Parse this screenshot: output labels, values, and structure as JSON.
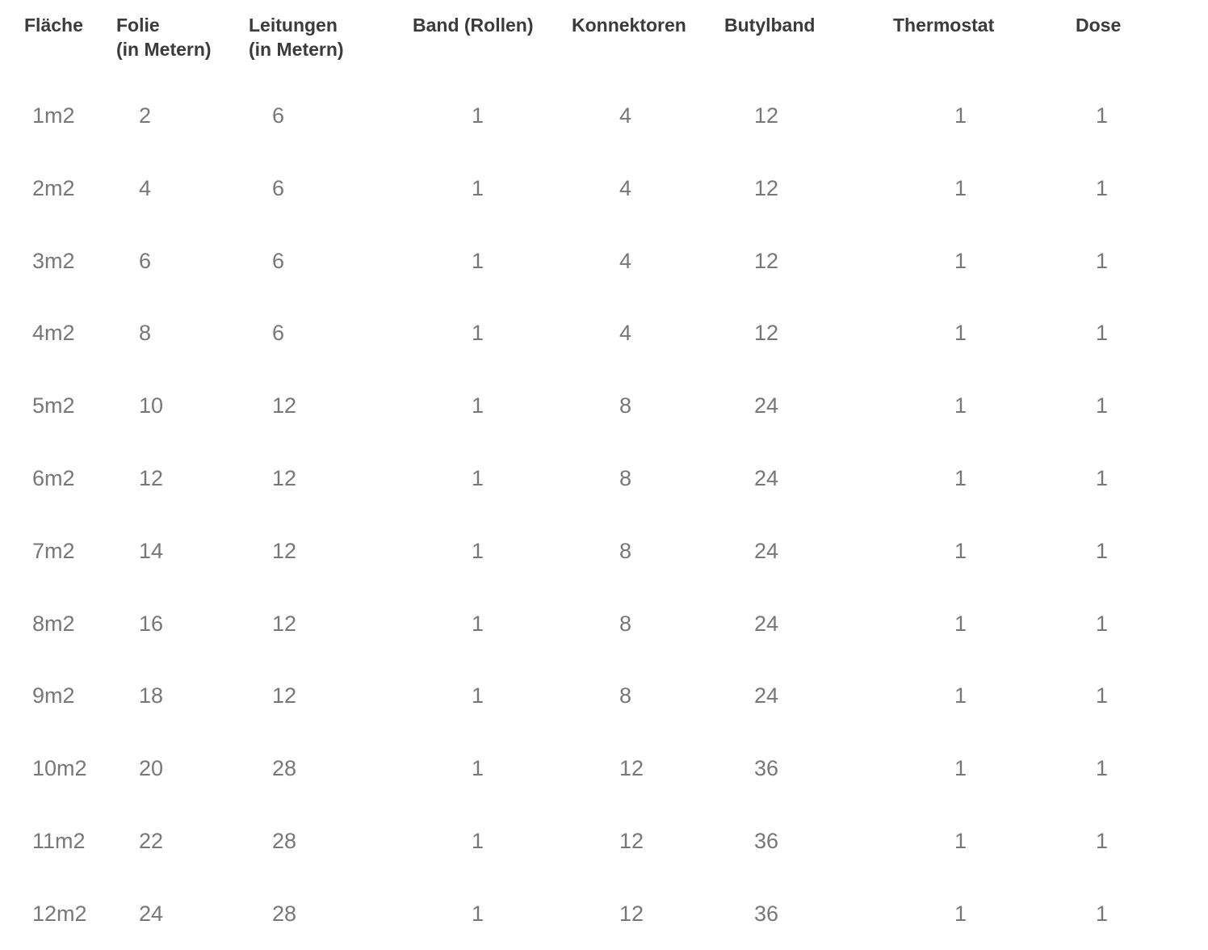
{
  "table": {
    "headers": [
      "Fläche",
      "Folie\n(in Metern)",
      "Leitungen\n(in Metern)",
      "Band (Rollen)",
      "Konnektoren",
      "Butylband",
      "Thermostat",
      "Dose"
    ],
    "rows": [
      [
        "1m2",
        "2",
        "6",
        "1",
        "4",
        "12",
        "1",
        "1"
      ],
      [
        "2m2",
        "4",
        "6",
        "1",
        "4",
        "12",
        "1",
        "1"
      ],
      [
        "3m2",
        "6",
        "6",
        "1",
        "4",
        "12",
        "1",
        "1"
      ],
      [
        "4m2",
        "8",
        "6",
        "1",
        "4",
        "12",
        "1",
        "1"
      ],
      [
        "5m2",
        "10",
        "12",
        "1",
        "8",
        "24",
        "1",
        "1"
      ],
      [
        "6m2",
        "12",
        "12",
        "1",
        "8",
        "24",
        "1",
        "1"
      ],
      [
        "7m2",
        "14",
        "12",
        "1",
        "8",
        "24",
        "1",
        "1"
      ],
      [
        "8m2",
        "16",
        "12",
        "1",
        "8",
        "24",
        "1",
        "1"
      ],
      [
        "9m2",
        "18",
        "12",
        "1",
        "8",
        "24",
        "1",
        "1"
      ],
      [
        "10m2",
        "20",
        "28",
        "1",
        "12",
        "36",
        "1",
        "1"
      ],
      [
        "11m2",
        "22",
        "28",
        "1",
        "12",
        "36",
        "1",
        "1"
      ],
      [
        "12m2",
        "24",
        "28",
        "1",
        "12",
        "36",
        "1",
        "1"
      ]
    ]
  },
  "colors": {
    "header": "#3d3a3c",
    "body": "#777777"
  }
}
